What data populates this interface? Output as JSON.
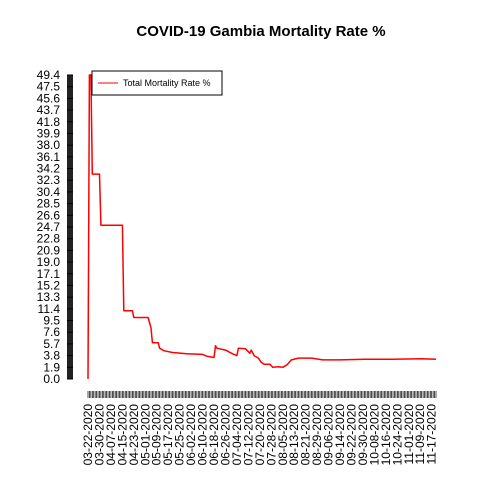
{
  "chart_data": {
    "type": "line",
    "title": "COVID-19 Gambia Mortality Rate %",
    "xlabel": "",
    "ylabel": "",
    "legend": {
      "position": "top-left",
      "entries": [
        "Total Mortality Rate %"
      ]
    },
    "colors": {
      "series": "#ff0000",
      "axis": "#000000",
      "background": "#ffffff"
    },
    "ylim": [
      0,
      49.4
    ],
    "y_ticks": [
      "0.0",
      "1.9",
      "3.8",
      "5.7",
      "7.6",
      "9.5",
      "11.4",
      "13.3",
      "15.2",
      "17.1",
      "19.0",
      "20.9",
      "22.8",
      "24.7",
      "26.6",
      "28.5",
      "30.4",
      "32.3",
      "34.2",
      "36.1",
      "38.0",
      "39.9",
      "41.8",
      "43.7",
      "45.6",
      "47.5",
      "49.4"
    ],
    "x_ticks": [
      "03-22-2020",
      "03-30-2020",
      "04-07-2020",
      "04-15-2020",
      "04-23-2020",
      "05-01-2020",
      "05-09-2020",
      "05-17-2020",
      "05-25-2020",
      "06-02-2020",
      "06-10-2020",
      "06-18-2020",
      "06-26-2020",
      "07-04-2020",
      "07-12-2020",
      "07-20-2020",
      "07-28-2020",
      "08-05-2020",
      "08-13-2020",
      "08-21-2020",
      "08-29-2020",
      "09-06-2020",
      "09-14-2020",
      "09-22-2020",
      "09-30-2020",
      "10-08-2020",
      "10-16-2020",
      "10-24-2020",
      "11-01-2020",
      "11-09-2020",
      "11-17-2020"
    ],
    "x_range": [
      "03-22-2020",
      "11-20-2020"
    ],
    "series": [
      {
        "name": "Total Mortality Rate %",
        "points": [
          [
            "03-22-2020",
            0.0
          ],
          [
            "03-23-2020",
            50.0
          ],
          [
            "03-24-2020",
            50.0
          ],
          [
            "03-25-2020",
            33.3
          ],
          [
            "03-30-2020",
            33.3
          ],
          [
            "03-31-2020",
            25.0
          ],
          [
            "04-15-2020",
            25.0
          ],
          [
            "04-16-2020",
            11.1
          ],
          [
            "04-22-2020",
            11.1
          ],
          [
            "04-23-2020",
            10.0
          ],
          [
            "05-03-2020",
            10.0
          ],
          [
            "05-05-2020",
            8.3
          ],
          [
            "05-06-2020",
            5.9
          ],
          [
            "05-10-2020",
            5.9
          ],
          [
            "05-11-2020",
            5.0
          ],
          [
            "05-14-2020",
            4.6
          ],
          [
            "05-20-2020",
            4.3
          ],
          [
            "05-30-2020",
            4.1
          ],
          [
            "06-10-2020",
            4.0
          ],
          [
            "06-13-2020",
            3.7
          ],
          [
            "06-18-2020",
            3.5
          ],
          [
            "06-19-2020",
            5.4
          ],
          [
            "06-20-2020",
            5.0
          ],
          [
            "06-26-2020",
            4.7
          ],
          [
            "07-01-2020",
            4.1
          ],
          [
            "07-04-2020",
            3.8
          ],
          [
            "07-05-2020",
            5.0
          ],
          [
            "07-10-2020",
            4.9
          ],
          [
            "07-13-2020",
            4.2
          ],
          [
            "07-14-2020",
            4.7
          ],
          [
            "07-16-2020",
            3.8
          ],
          [
            "07-19-2020",
            3.4
          ],
          [
            "07-21-2020",
            2.7
          ],
          [
            "07-23-2020",
            2.4
          ],
          [
            "07-27-2020",
            2.4
          ],
          [
            "07-29-2020",
            1.9
          ],
          [
            "08-02-2020",
            2.0
          ],
          [
            "08-05-2020",
            1.9
          ],
          [
            "08-08-2020",
            2.3
          ],
          [
            "08-11-2020",
            3.1
          ],
          [
            "08-16-2020",
            3.4
          ],
          [
            "08-25-2020",
            3.4
          ],
          [
            "09-02-2020",
            3.1
          ],
          [
            "09-14-2020",
            3.1
          ],
          [
            "10-01-2020",
            3.2
          ],
          [
            "10-20-2020",
            3.2
          ],
          [
            "11-10-2020",
            3.3
          ],
          [
            "11-20-2020",
            3.2
          ]
        ]
      }
    ]
  }
}
